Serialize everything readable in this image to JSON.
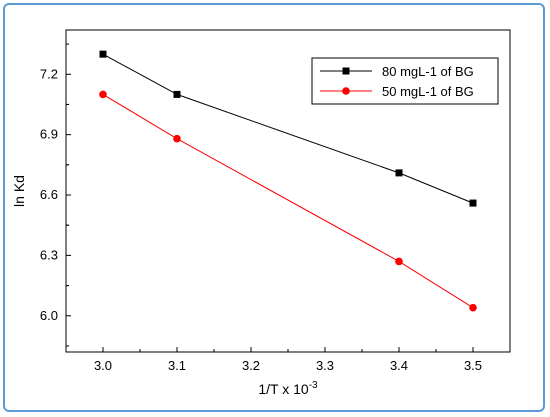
{
  "chart_data": {
    "type": "line",
    "xlabel": "1/T x 10",
    "xlabel_superscript": "-3",
    "ylabel": "ln Kd",
    "xlim": [
      2.95,
      3.55
    ],
    "ylim": [
      5.82,
      7.42
    ],
    "x_ticks": [
      "3.0",
      "3.1",
      "3.2",
      "3.3",
      "3.4",
      "3.5"
    ],
    "y_ticks": [
      "6.0",
      "6.3",
      "6.6",
      "6.9",
      "7.2"
    ],
    "grid": false,
    "legend_position": "top-right",
    "series": [
      {
        "name": "80 mgL-1 of BG",
        "color": "#000000",
        "marker": "square",
        "x": [
          3.0,
          3.1,
          3.4,
          3.5
        ],
        "y": [
          7.3,
          7.1,
          6.71,
          6.56
        ]
      },
      {
        "name": "50 mgL-1 of BG",
        "color": "#ff0000",
        "marker": "circle",
        "x": [
          3.0,
          3.1,
          3.4,
          3.5
        ],
        "y": [
          7.1,
          6.88,
          6.27,
          6.04
        ]
      }
    ]
  }
}
